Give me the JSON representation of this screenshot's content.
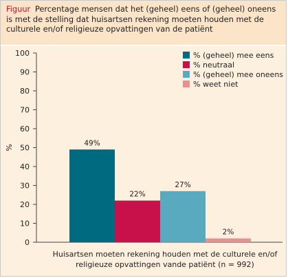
{
  "figure": {
    "label": "Figuur",
    "caption": "Percentage mensen dat het (geheel) eens of (geheel) oneens is met de stelling dat huisartsen rekening moeten houden met de culturele en/of religieuze opvattingen van de patiënt"
  },
  "colors": {
    "background": "#fdf0df",
    "header_background": "#fbe4c8",
    "figure_label": "#c8102e"
  },
  "chart_data": {
    "type": "bar",
    "title": "",
    "ylabel": "%",
    "xlabel": "",
    "ylim": [
      0,
      100
    ],
    "yticks": [
      0,
      10,
      20,
      30,
      40,
      50,
      60,
      70,
      80,
      90,
      100
    ],
    "grid": false,
    "legend_position": "top-right",
    "category_lines": [
      "Huisartsen moeten rekening houden met de culturele en/of",
      "religieuze opvattingen vande patiënt (n = 992)"
    ],
    "series": [
      {
        "name": "% (geheel) mee eens",
        "value": 49,
        "label": "49%",
        "color": "#006a80"
      },
      {
        "name": "% neutraal",
        "value": 22,
        "label": "22%",
        "color": "#c8104a"
      },
      {
        "name": "% (geheel) mee oneens",
        "value": 27,
        "label": "27%",
        "color": "#5aaabf"
      },
      {
        "name": "% weet niet",
        "value": 2,
        "label": "2%",
        "color": "#e89090"
      }
    ]
  }
}
